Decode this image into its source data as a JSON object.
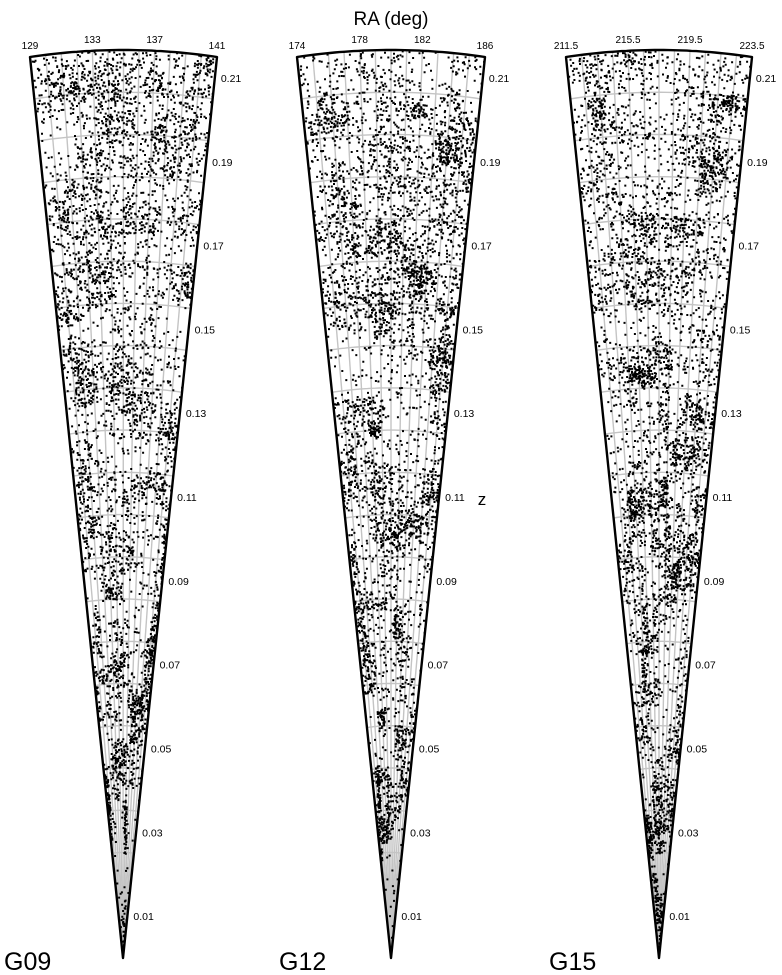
{
  "chart_data": {
    "type": "scatter",
    "title": "",
    "xlabel": "RA (deg)",
    "ylabel": "z",
    "grid": true,
    "style": {
      "point_color": "#000000",
      "grid_color": "#c4c4c4",
      "outline_color": "#000000"
    },
    "panels": [
      {
        "name": "G09",
        "ra_range": [
          129,
          141
        ],
        "ra_ticks": [
          "129",
          "133",
          "137",
          "141"
        ],
        "z_range": [
          0,
          0.215
        ],
        "z_ticks": [
          "0.01",
          "0.03",
          "0.05",
          "0.07",
          "0.09",
          "0.11",
          "0.13",
          "0.15",
          "0.17",
          "0.19",
          "0.21"
        ]
      },
      {
        "name": "G12",
        "ra_range": [
          174,
          186
        ],
        "ra_ticks": [
          "174",
          "178",
          "182",
          "186"
        ],
        "z_range": [
          0,
          0.215
        ],
        "z_ticks": [
          "0.01",
          "0.03",
          "0.05",
          "0.07",
          "0.09",
          "0.11",
          "0.13",
          "0.15",
          "0.17",
          "0.19",
          "0.21"
        ]
      },
      {
        "name": "G15",
        "ra_range": [
          211.5,
          223.5
        ],
        "ra_ticks": [
          "211.5",
          "215.5",
          "219.5",
          "223.5"
        ],
        "z_range": [
          0,
          0.215
        ],
        "z_ticks": [
          "0.01",
          "0.03",
          "0.05",
          "0.07",
          "0.09",
          "0.11",
          "0.13",
          "0.15",
          "0.17",
          "0.19",
          "0.21"
        ]
      }
    ]
  }
}
